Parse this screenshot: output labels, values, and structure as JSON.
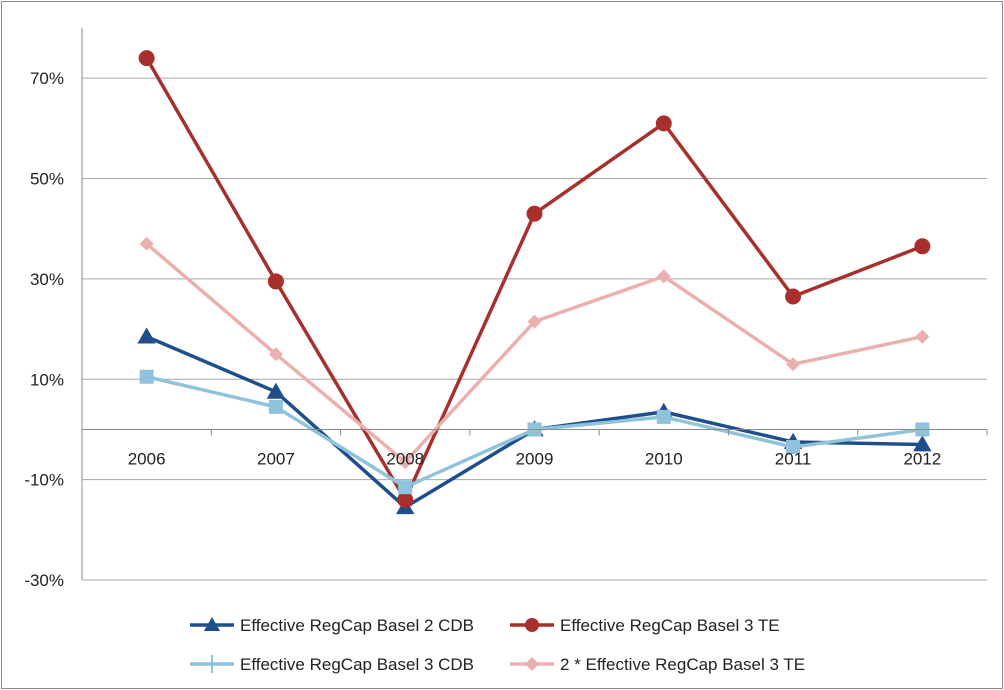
{
  "chart_data": {
    "type": "line",
    "title": "",
    "xlabel": "",
    "ylabel": "",
    "categories": [
      "2006",
      "2007",
      "2008",
      "2009",
      "2010",
      "2011",
      "2012"
    ],
    "ylim": [
      -30,
      80
    ],
    "y_ticks": [
      -30,
      -10,
      10,
      30,
      50,
      70
    ],
    "y_tick_labels": [
      "-30%",
      "-10%",
      "10%",
      "30%",
      "50%",
      "70%"
    ],
    "grid": true,
    "legend_position": "bottom",
    "series": [
      {
        "name": "Effective RegCap Basel 2 CDB",
        "color": "#1f4e8c",
        "marker": "triangle",
        "values": [
          18.5,
          7.5,
          -15.5,
          0,
          3.5,
          -2.5,
          -3
        ]
      },
      {
        "name": "Effective RegCap Basel 3 TE",
        "color": "#a8302c",
        "marker": "circle",
        "values": [
          74,
          29.5,
          -14,
          43,
          61,
          26.5,
          36.5
        ]
      },
      {
        "name": "Effective RegCap Basel 3 CDB",
        "color": "#8fc3dc",
        "marker": "square",
        "values": [
          10.5,
          4.5,
          -11.5,
          0,
          2.5,
          -3.5,
          0
        ]
      },
      {
        "name": "2 * Effective RegCap Basel 3 TE",
        "color": "#ebb0ae",
        "marker": "diamond",
        "values": [
          37,
          15,
          -6.5,
          21.5,
          30.5,
          13,
          18.5
        ]
      }
    ],
    "legend_marker_styles": {
      "Effective RegCap Basel 3 CDB": "cross"
    }
  }
}
